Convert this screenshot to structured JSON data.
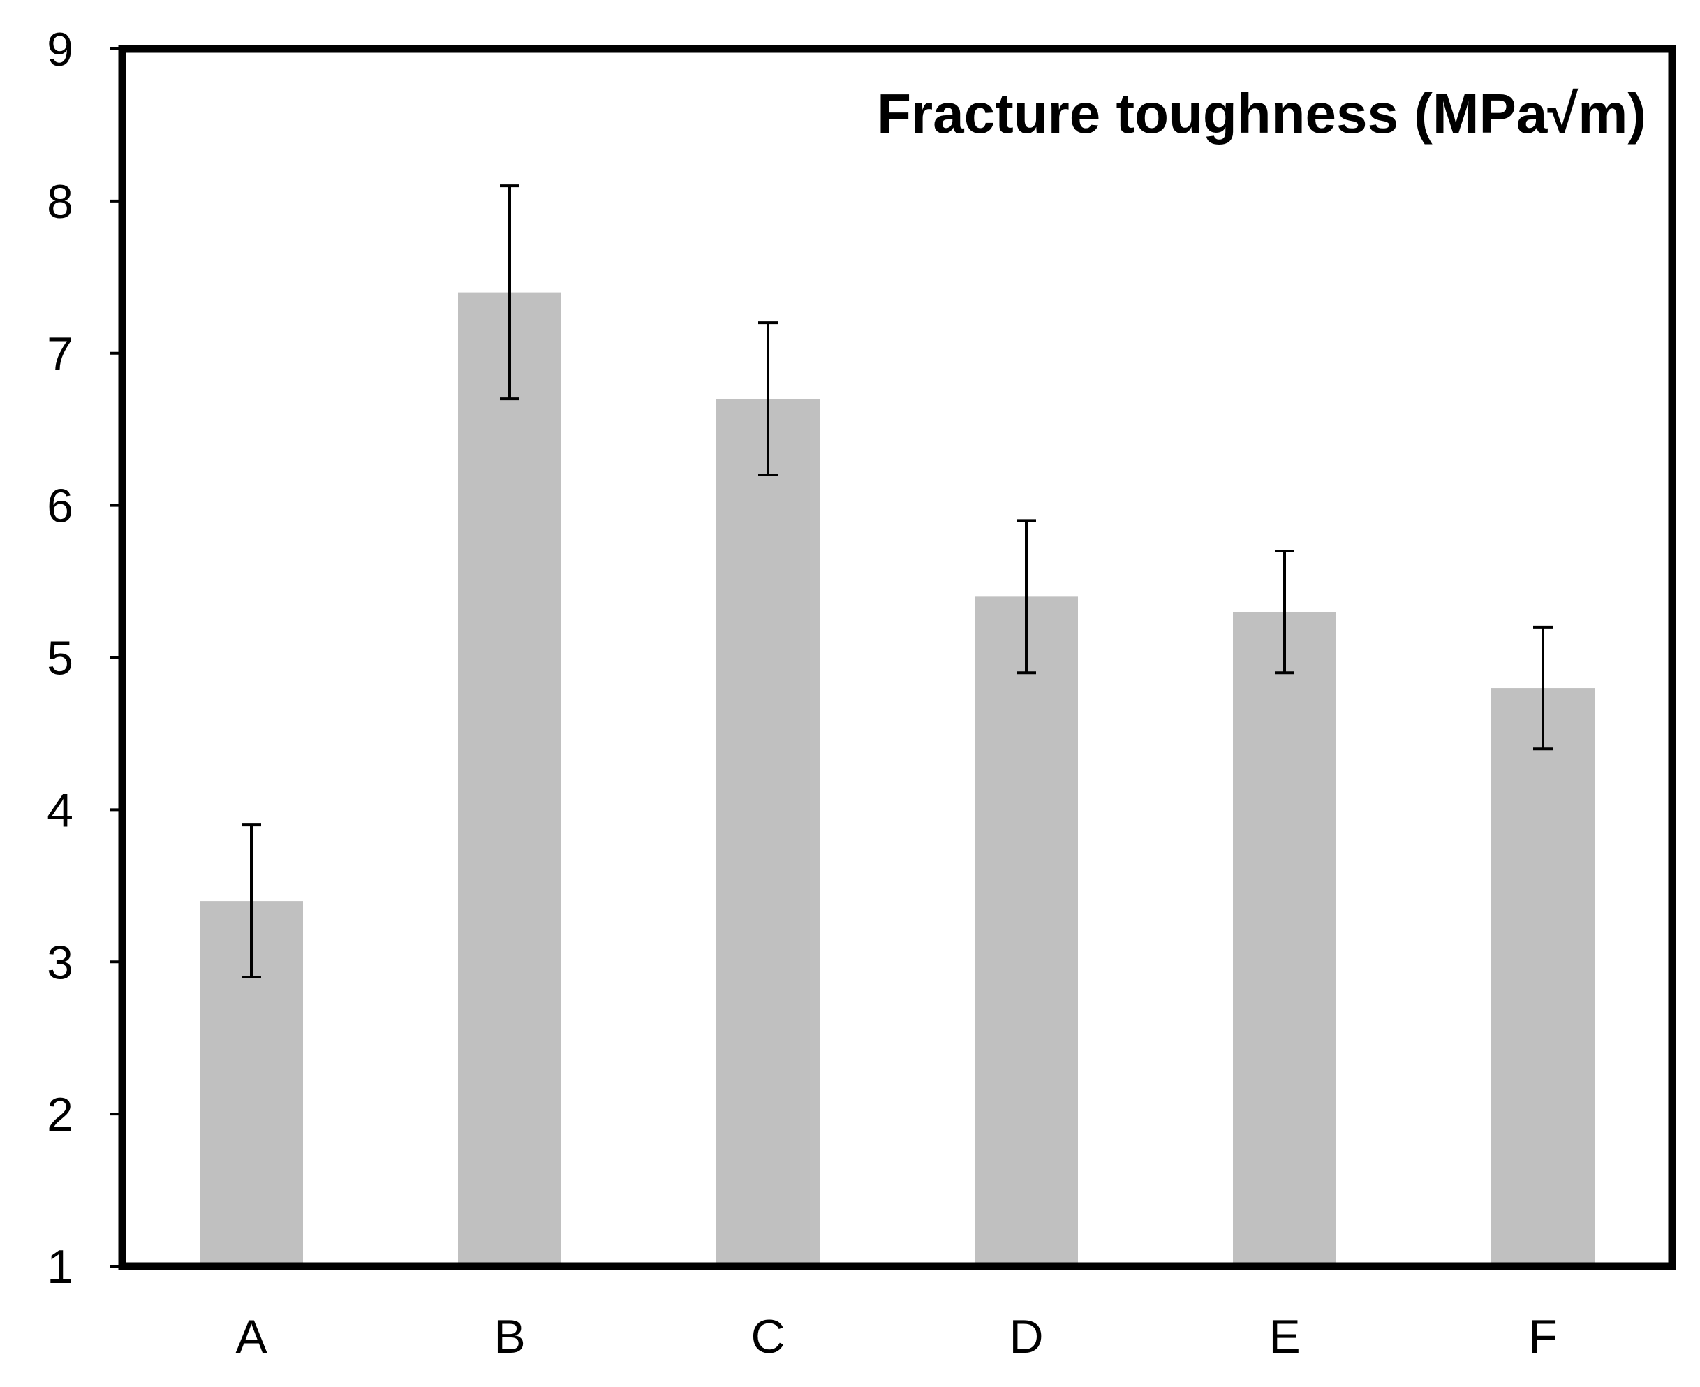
{
  "chart_data": {
    "type": "bar",
    "title": "Fracture toughness (MPa√m)",
    "xlabel": "",
    "ylabel": "",
    "categories": [
      "A",
      "B",
      "C",
      "D",
      "E",
      "F"
    ],
    "values": [
      3.4,
      7.4,
      6.7,
      5.4,
      5.3,
      4.8
    ],
    "error_low": [
      2.9,
      6.7,
      6.2,
      4.9,
      4.9,
      4.4
    ],
    "error_high": [
      3.9,
      8.1,
      7.2,
      5.9,
      5.7,
      5.2
    ],
    "ylim": [
      1,
      9
    ],
    "yticks": [
      "1",
      "2",
      "3",
      "4",
      "5",
      "6",
      "7",
      "8",
      "9"
    ],
    "grid": false,
    "legend": "none",
    "colors": {
      "bar": "#c0c0c0",
      "error_bar": "#000000",
      "frame": "#000000"
    }
  }
}
